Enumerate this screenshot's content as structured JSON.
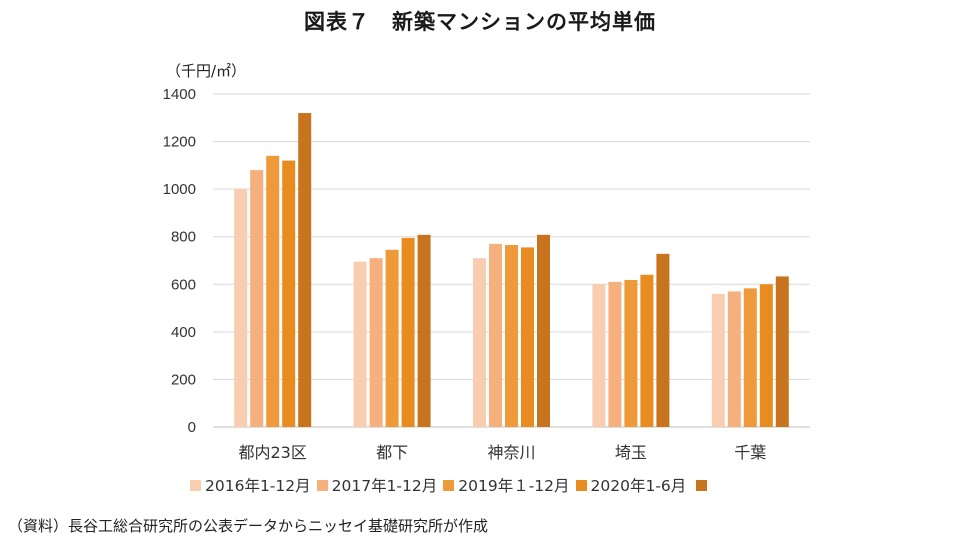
{
  "title": "図表７　新築マンションの平均単価",
  "unit": "（千円/㎡）",
  "source": "（資料）長谷工総合研究所の公表データからニッセイ基礎研究所が作成",
  "legend_extra_color": "#c8741f",
  "chart_data": {
    "type": "bar",
    "title": "図表７　新築マンションの平均単価",
    "ylabel": "（千円/㎡）",
    "xlabel": "",
    "ylim": [
      0,
      1400
    ],
    "yticks": [
      0,
      200,
      400,
      600,
      800,
      1000,
      1200,
      1400
    ],
    "grid": true,
    "legend": "bottom",
    "categories": [
      "都内23区",
      "都下",
      "神奈川",
      "埼玉",
      "千葉"
    ],
    "series": [
      {
        "name": "2016年1-12月",
        "color": "#f9cdb0",
        "values": [
          1000,
          695,
          710,
          600,
          560
        ]
      },
      {
        "name": "2017年1-12月",
        "color": "#f5b07e",
        "values": [
          1080,
          710,
          770,
          610,
          570
        ]
      },
      {
        "name": "2019年１-12月",
        "color": "#ef9a3a",
        "values": [
          1140,
          745,
          765,
          618,
          583
        ]
      },
      {
        "name": "2020年1-6月",
        "color": "#e88c1f",
        "values": [
          1120,
          795,
          755,
          640,
          600
        ]
      },
      {
        "name": "",
        "color": "#c8741f",
        "values": [
          1320,
          808,
          808,
          728,
          633
        ]
      }
    ]
  }
}
